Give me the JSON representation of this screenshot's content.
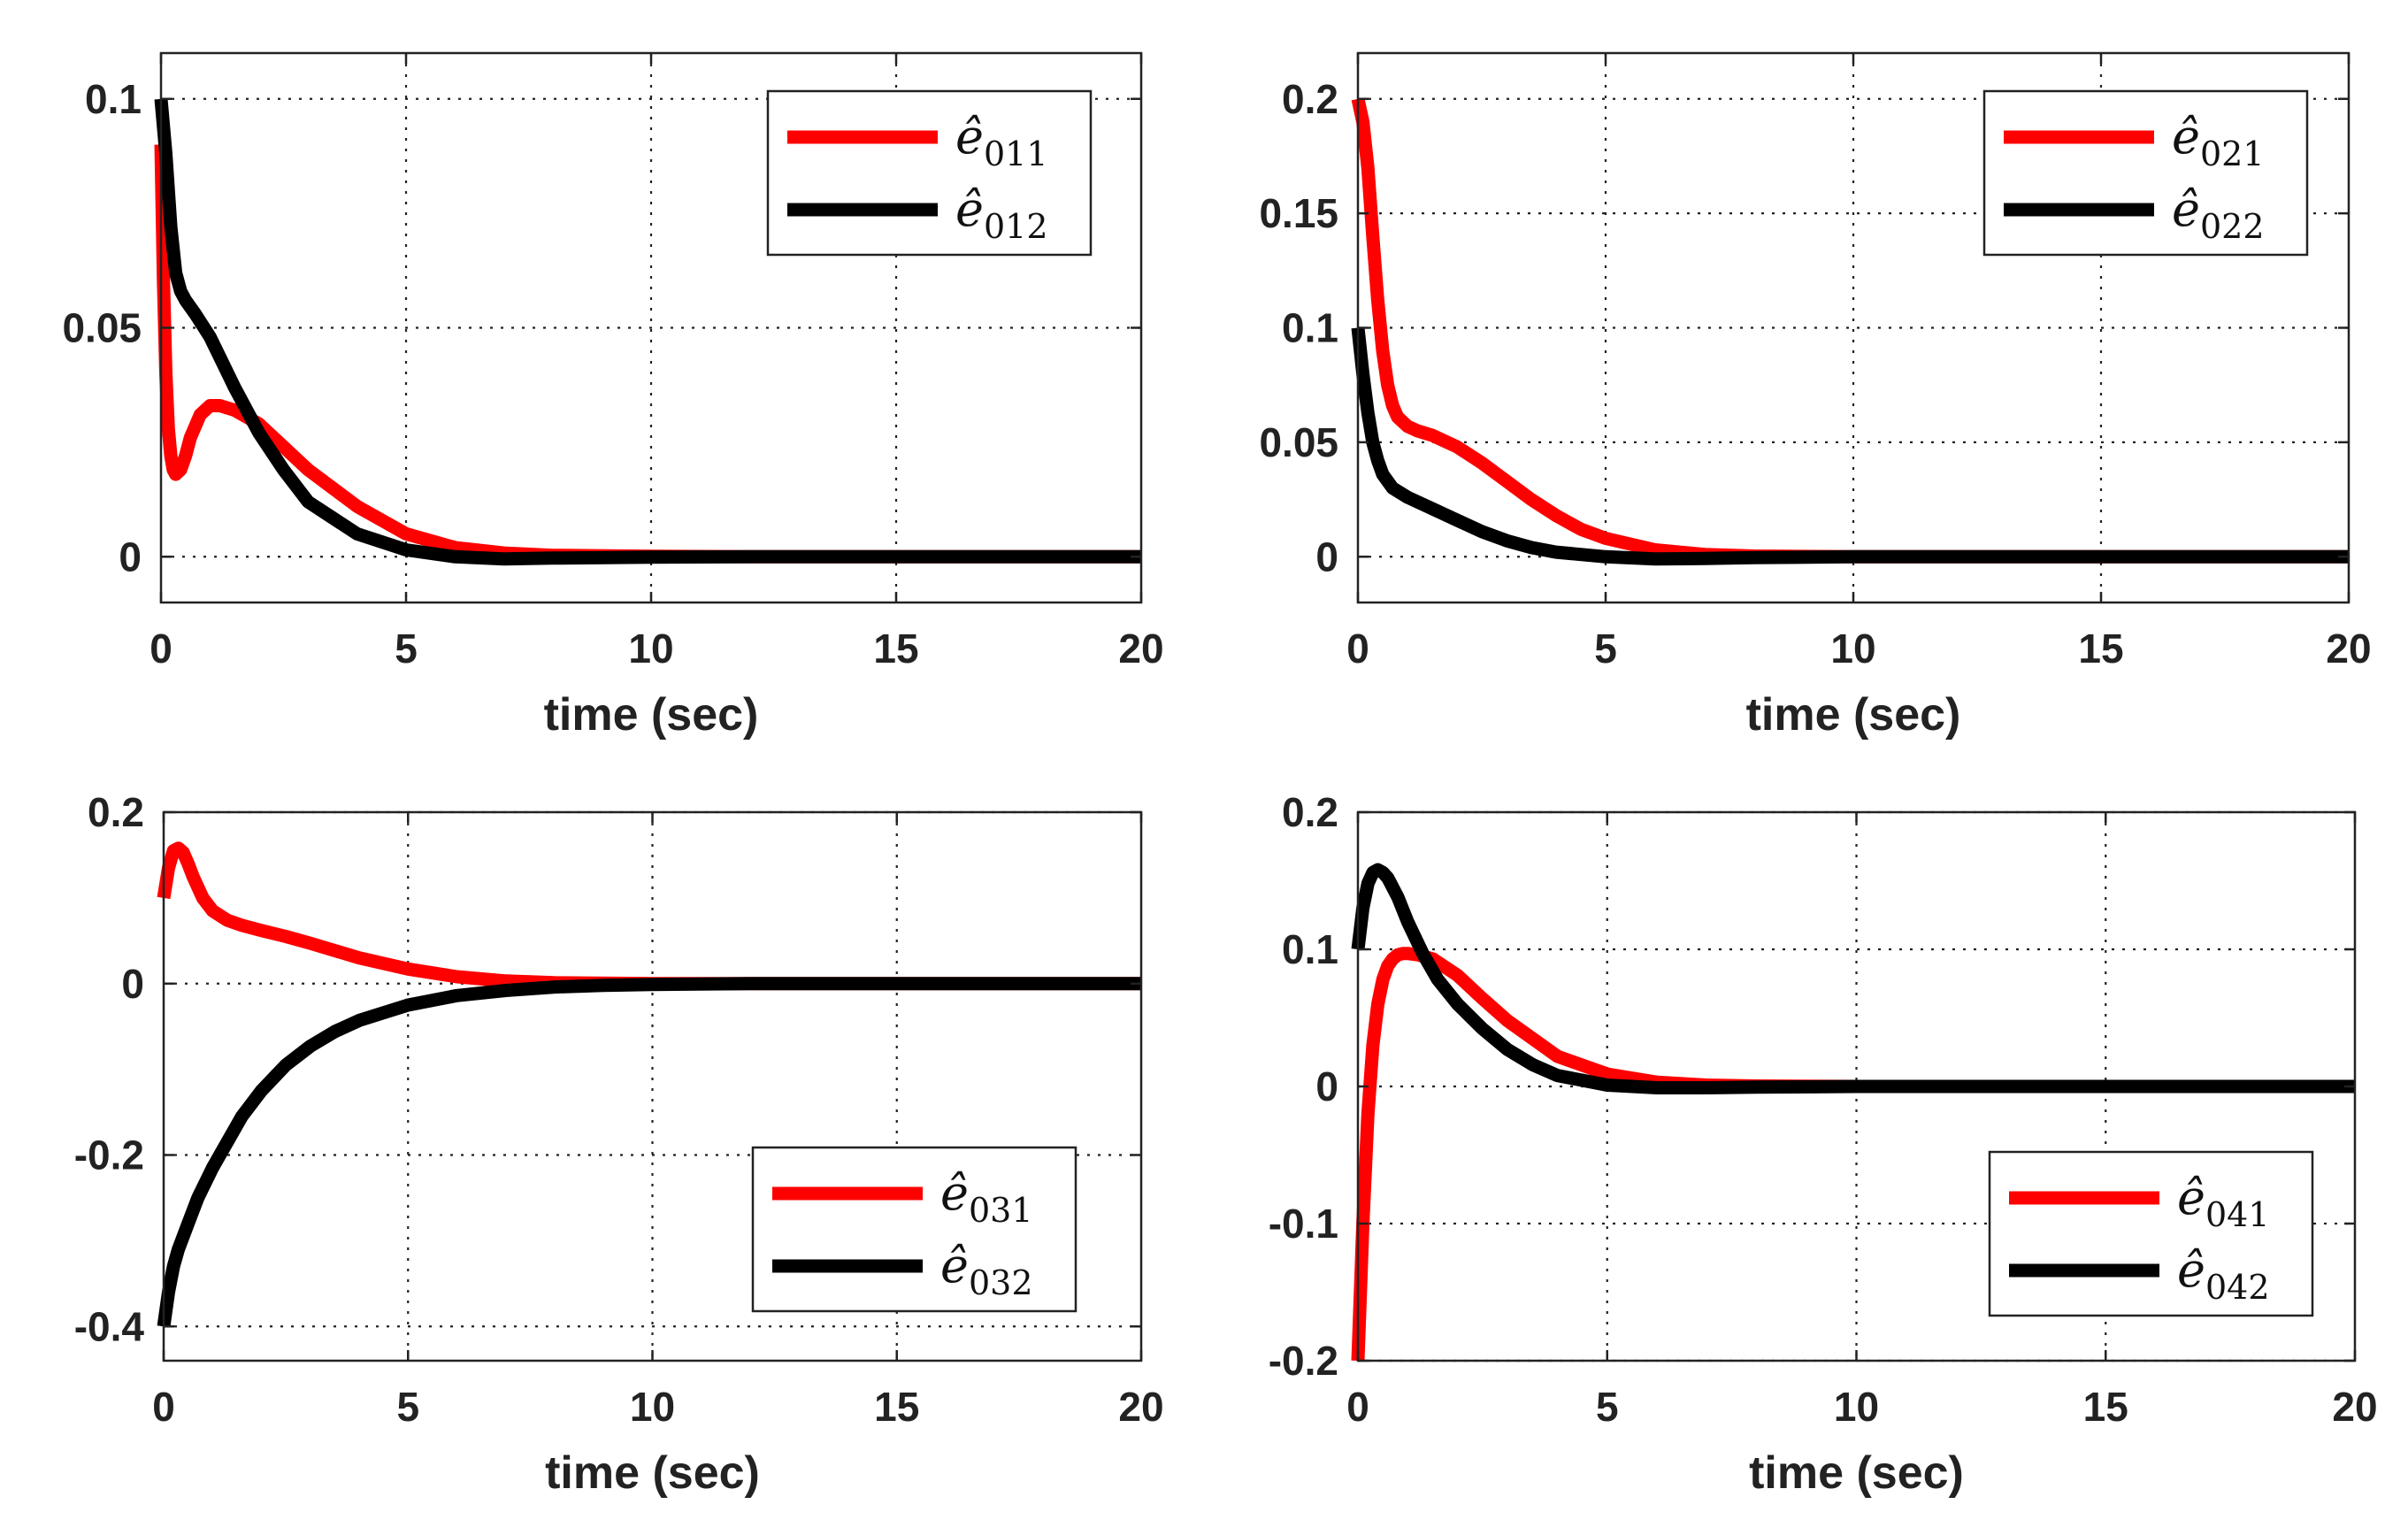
{
  "colors": {
    "red": "#ff0000",
    "black": "#000000",
    "grid": "#222222",
    "axes": "#222222"
  },
  "chart_data": [
    {
      "type": "line",
      "title": "",
      "xlabel": "time (sec)",
      "ylabel": "",
      "xlim": [
        0,
        20
      ],
      "ylim": [
        -0.01,
        0.11
      ],
      "xticks": [
        0,
        5,
        10,
        15,
        20
      ],
      "xtick_labels": [
        "0",
        "5",
        "10",
        "15",
        "20"
      ],
      "yticks": [
        0,
        0.05,
        0.1
      ],
      "ytick_labels": [
        "0",
        "0.05",
        "0.1"
      ],
      "grid": true,
      "legend_position": "top-right",
      "series": [
        {
          "name": "ê011",
          "label_base": "ê",
          "label_sub": "011",
          "color": "#ff0000",
          "x": [
            0,
            0.05,
            0.1,
            0.15,
            0.2,
            0.25,
            0.3,
            0.4,
            0.5,
            0.6,
            0.8,
            1.0,
            1.2,
            1.5,
            2.0,
            2.5,
            3,
            4,
            5,
            6,
            7,
            8,
            10,
            12,
            15,
            20
          ],
          "y": [
            0.09,
            0.06,
            0.04,
            0.028,
            0.022,
            0.019,
            0.018,
            0.019,
            0.022,
            0.026,
            0.031,
            0.033,
            0.033,
            0.032,
            0.029,
            0.024,
            0.019,
            0.011,
            0.005,
            0.002,
            0.0008,
            0.0003,
            0.0001,
            0,
            0,
            0
          ]
        },
        {
          "name": "ê012",
          "label_base": "ê",
          "label_sub": "012",
          "color": "#000000",
          "x": [
            0,
            0.1,
            0.2,
            0.3,
            0.4,
            0.5,
            0.7,
            1.0,
            1.5,
            2.0,
            2.5,
            3,
            4,
            5,
            6,
            7,
            8,
            10,
            12,
            15,
            20
          ],
          "y": [
            0.1,
            0.088,
            0.072,
            0.062,
            0.058,
            0.056,
            0.053,
            0.048,
            0.037,
            0.027,
            0.019,
            0.012,
            0.005,
            0.0015,
            0,
            -0.0005,
            -0.0003,
            -0.0001,
            0,
            0,
            0
          ]
        }
      ]
    },
    {
      "type": "line",
      "title": "",
      "xlabel": "time (sec)",
      "ylabel": "",
      "xlim": [
        0,
        20
      ],
      "ylim": [
        -0.02,
        0.22
      ],
      "xticks": [
        0,
        5,
        10,
        15,
        20
      ],
      "xtick_labels": [
        "0",
        "5",
        "10",
        "15",
        "20"
      ],
      "yticks": [
        0,
        0.05,
        0.1,
        0.15,
        0.2
      ],
      "ytick_labels": [
        "0",
        "0.05",
        "0.1",
        "0.15",
        "0.2"
      ],
      "grid": true,
      "legend_position": "top-right",
      "series": [
        {
          "name": "ê021",
          "label_base": "ê",
          "label_sub": "021",
          "color": "#ff0000",
          "x": [
            0,
            0.1,
            0.2,
            0.3,
            0.4,
            0.5,
            0.6,
            0.7,
            0.8,
            1.0,
            1.2,
            1.5,
            2.0,
            2.5,
            3,
            3.5,
            4,
            4.5,
            5,
            6,
            7,
            8,
            10,
            12,
            15,
            20
          ],
          "y": [
            0.2,
            0.19,
            0.17,
            0.14,
            0.112,
            0.09,
            0.075,
            0.066,
            0.061,
            0.057,
            0.055,
            0.053,
            0.048,
            0.041,
            0.033,
            0.025,
            0.018,
            0.012,
            0.008,
            0.003,
            0.001,
            0.0003,
            0,
            0,
            0,
            0
          ]
        },
        {
          "name": "ê022",
          "label_base": "ê",
          "label_sub": "022",
          "color": "#000000",
          "x": [
            0,
            0.1,
            0.2,
            0.3,
            0.4,
            0.5,
            0.7,
            1.0,
            1.5,
            2.0,
            2.5,
            3,
            3.5,
            4,
            5,
            6,
            7,
            8,
            10,
            12,
            15,
            20
          ],
          "y": [
            0.1,
            0.08,
            0.063,
            0.05,
            0.042,
            0.036,
            0.03,
            0.026,
            0.021,
            0.016,
            0.011,
            0.007,
            0.004,
            0.002,
            0,
            -0.001,
            -0.0008,
            -0.0004,
            0,
            0,
            0,
            0
          ]
        }
      ]
    },
    {
      "type": "line",
      "title": "",
      "xlabel": "time (sec)",
      "ylabel": "",
      "xlim": [
        0,
        20
      ],
      "ylim": [
        -0.44,
        0.2
      ],
      "xticks": [
        0,
        5,
        10,
        15,
        20
      ],
      "xtick_labels": [
        "0",
        "5",
        "10",
        "15",
        "20"
      ],
      "yticks": [
        -0.4,
        -0.2,
        0,
        0.2
      ],
      "ytick_labels": [
        "-0.4",
        "-0.2",
        "0",
        "0.2"
      ],
      "grid": true,
      "legend_position": "bottom-right",
      "series": [
        {
          "name": "ê031",
          "label_base": "ê",
          "label_sub": "031",
          "color": "#ff0000",
          "x": [
            0,
            0.1,
            0.2,
            0.3,
            0.4,
            0.5,
            0.6,
            0.8,
            1.0,
            1.3,
            1.6,
            2.0,
            2.5,
            3,
            4,
            5,
            6,
            7,
            8,
            10,
            12,
            15,
            20
          ],
          "y": [
            0.1,
            0.135,
            0.155,
            0.158,
            0.153,
            0.14,
            0.125,
            0.1,
            0.085,
            0.074,
            0.068,
            0.062,
            0.055,
            0.047,
            0.03,
            0.017,
            0.008,
            0.003,
            0.001,
            0,
            0,
            0,
            0
          ]
        },
        {
          "name": "ê032",
          "label_base": "ê",
          "label_sub": "032",
          "color": "#000000",
          "x": [
            0,
            0.1,
            0.2,
            0.3,
            0.5,
            0.7,
            1.0,
            1.3,
            1.6,
            2.0,
            2.5,
            3,
            3.5,
            4,
            5,
            6,
            7,
            8,
            9,
            10,
            12,
            15,
            20
          ],
          "y": [
            -0.4,
            -0.36,
            -0.33,
            -0.31,
            -0.28,
            -0.25,
            -0.215,
            -0.185,
            -0.155,
            -0.125,
            -0.095,
            -0.073,
            -0.056,
            -0.043,
            -0.025,
            -0.014,
            -0.008,
            -0.004,
            -0.002,
            -0.001,
            0,
            0,
            0
          ]
        }
      ]
    },
    {
      "type": "line",
      "title": "",
      "xlabel": "time (sec)",
      "ylabel": "",
      "xlim": [
        0,
        20
      ],
      "ylim": [
        -0.2,
        0.2
      ],
      "xticks": [
        0,
        5,
        10,
        15,
        20
      ],
      "xtick_labels": [
        "0",
        "5",
        "10",
        "15",
        "20"
      ],
      "yticks": [
        -0.2,
        -0.1,
        0,
        0.1,
        0.2
      ],
      "ytick_labels": [
        "-0.2",
        "-0.1",
        "0",
        "0.1",
        "0.2"
      ],
      "grid": true,
      "legend_position": "bottom-right",
      "series": [
        {
          "name": "ê041",
          "label_base": "ê",
          "label_sub": "041",
          "color": "#ff0000",
          "x": [
            0,
            0.1,
            0.2,
            0.3,
            0.4,
            0.5,
            0.6,
            0.7,
            0.8,
            0.9,
            1.0,
            1.2,
            1.5,
            2.0,
            2.5,
            3,
            4,
            5,
            6,
            7,
            8,
            10,
            12,
            15,
            20
          ],
          "y": [
            -0.2,
            -0.1,
            -0.02,
            0.03,
            0.06,
            0.078,
            0.088,
            0.093,
            0.096,
            0.097,
            0.097,
            0.096,
            0.093,
            0.081,
            0.064,
            0.048,
            0.022,
            0.009,
            0.003,
            0.001,
            0.0003,
            0,
            0,
            0,
            0
          ]
        },
        {
          "name": "ê042",
          "label_base": "ê",
          "label_sub": "042",
          "color": "#000000",
          "x": [
            0,
            0.1,
            0.2,
            0.3,
            0.4,
            0.5,
            0.6,
            0.8,
            1.0,
            1.3,
            1.6,
            2.0,
            2.5,
            3,
            3.5,
            4,
            5,
            6,
            7,
            8,
            10,
            12,
            15,
            20
          ],
          "y": [
            0.1,
            0.13,
            0.148,
            0.156,
            0.158,
            0.156,
            0.152,
            0.138,
            0.12,
            0.097,
            0.078,
            0.06,
            0.042,
            0.027,
            0.016,
            0.008,
            0.001,
            -0.001,
            -0.001,
            -0.0005,
            0,
            0,
            0,
            0
          ]
        }
      ]
    }
  ]
}
